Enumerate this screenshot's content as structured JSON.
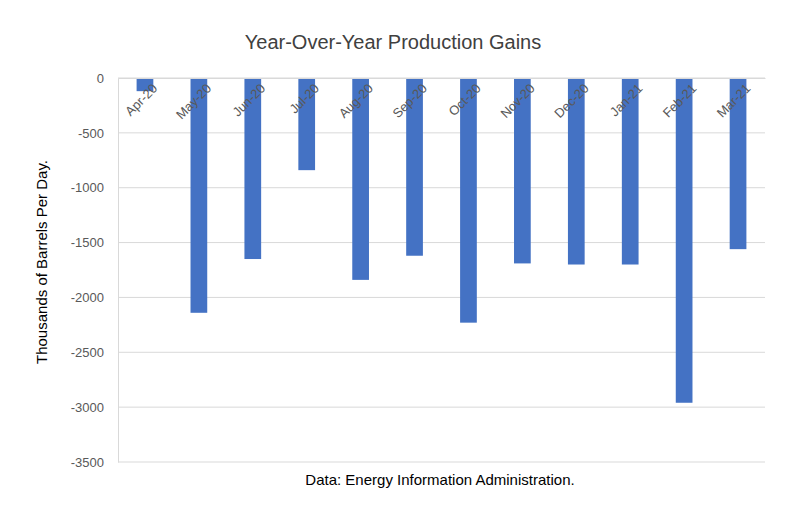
{
  "chart_data": {
    "type": "bar",
    "title": "Year-Over-Year Production Gains",
    "y_label": "Thousands of Barrels Per Day.",
    "annotations": [
      "Data: Energy Information Administration."
    ],
    "categories": [
      "Apr-20",
      "May-20",
      "Jun-20",
      "Jul-20",
      "Aug-20",
      "Sep-20",
      "Oct-20",
      "Nov-20",
      "Dec-20",
      "Jan-21",
      "Feb-21",
      "Mar-21"
    ],
    "values": [
      -120,
      -2140,
      -1650,
      -840,
      -1840,
      -1620,
      -2230,
      -1690,
      -1700,
      -1700,
      -2960,
      -1560
    ],
    "color": "#4472c4",
    "ylim": [
      -3500,
      0
    ],
    "yticks": [
      0,
      -500,
      -1000,
      -1500,
      -2000,
      -2500,
      -3000,
      -3500
    ],
    "grid": true
  }
}
